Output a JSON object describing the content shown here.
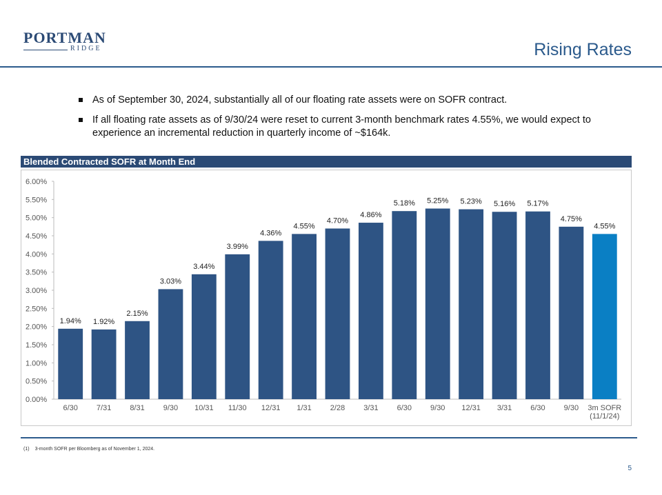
{
  "logo": {
    "main": "PORTMAN",
    "sub": "RIDGE"
  },
  "title": "Rising Rates",
  "bullets": [
    "As of September 30, 2024, substantially all of our floating rate assets were on SOFR contract.",
    "If all floating rate assets as of 9/30/24 were reset to current 3-month benchmark rates 4.55%, we would expect to experience an incremental reduction in quarterly income of ~$164k."
  ],
  "chart_header": "Blended Contracted SOFR at Month End",
  "chart_data": {
    "type": "bar",
    "title": "Blended Contracted SOFR at Month End",
    "categories": [
      "6/30",
      "7/31",
      "8/31",
      "9/30",
      "10/31",
      "11/30",
      "12/31",
      "1/31",
      "2/28",
      "3/31",
      "6/30",
      "9/30",
      "12/31",
      "3/31",
      "6/30",
      "9/30",
      "3m SOFR (11/1/24)"
    ],
    "category_lines": [
      [
        "6/30"
      ],
      [
        "7/31"
      ],
      [
        "8/31"
      ],
      [
        "9/30"
      ],
      [
        "10/31"
      ],
      [
        "11/30"
      ],
      [
        "12/31"
      ],
      [
        "1/31"
      ],
      [
        "2/28"
      ],
      [
        "3/31"
      ],
      [
        "6/30"
      ],
      [
        "9/30"
      ],
      [
        "12/31"
      ],
      [
        "3/31"
      ],
      [
        "6/30"
      ],
      [
        "9/30"
      ],
      [
        "3m SOFR",
        "(11/1/24)"
      ]
    ],
    "values": [
      1.94,
      1.92,
      2.15,
      3.03,
      3.44,
      3.99,
      4.36,
      4.55,
      4.7,
      4.86,
      5.18,
      5.25,
      5.23,
      5.16,
      5.17,
      4.75,
      4.55
    ],
    "data_labels": [
      "1.94%",
      "1.92%",
      "2.15%",
      "3.03%",
      "3.44%",
      "3.99%",
      "4.36%",
      "4.55%",
      "4.70%",
      "4.86%",
      "5.18%",
      "5.25%",
      "5.23%",
      "5.16%",
      "5.17%",
      "4.75%",
      "4.55%"
    ],
    "yticks": [
      "0.00%",
      "0.50%",
      "1.00%",
      "1.50%",
      "2.00%",
      "2.50%",
      "3.00%",
      "3.50%",
      "4.00%",
      "4.50%",
      "5.00%",
      "5.50%",
      "6.00%"
    ],
    "ylim": [
      0,
      6
    ],
    "ystep": 0.5,
    "grid": false,
    "colors": {
      "bar": "#2e5484",
      "highlight": "#0a7fc4",
      "text": "#333333",
      "axis": "#bbbbbb"
    },
    "highlight_index": 16
  },
  "footnote": {
    "marker": "(1)",
    "text": "3-month SOFR per Bloomberg as of November 1, 2024."
  },
  "page_number": "5"
}
